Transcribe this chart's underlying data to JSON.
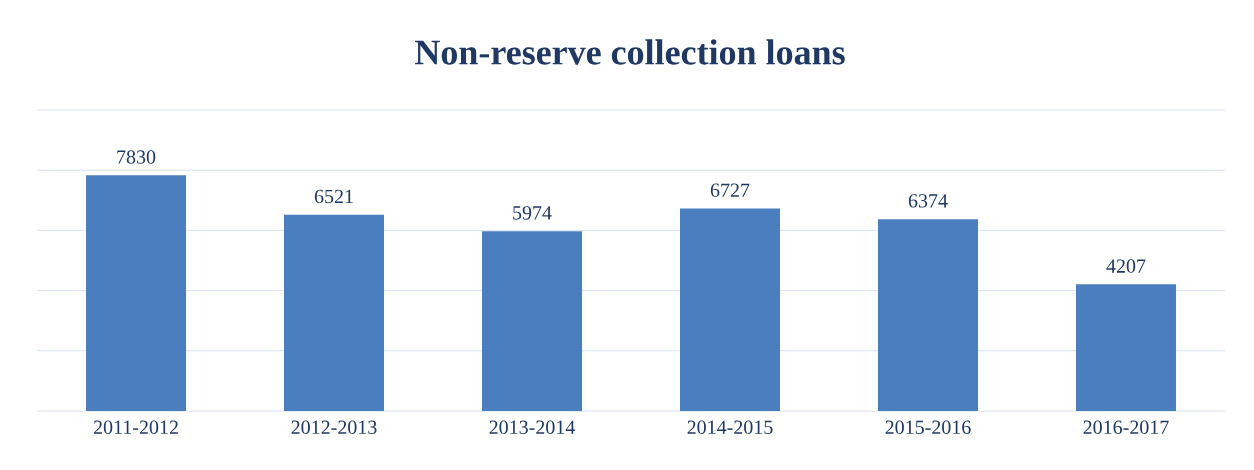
{
  "chart_data": {
    "type": "bar",
    "title": "Non-reserve collection loans",
    "categories": [
      "2011-2012",
      "2012-2013",
      "2013-2014",
      "2014-2015",
      "2015-2016",
      "2016-2017"
    ],
    "values": [
      7830,
      6521,
      5974,
      6727,
      6374,
      4207
    ],
    "color": "#4a7ebf",
    "ylim": [
      0,
      10000
    ],
    "yticks": [
      {
        "value": 0,
        "label": null
      },
      {
        "value": 2000,
        "label": null
      },
      {
        "value": 4000,
        "label": null
      },
      {
        "value": 6000,
        "label": null
      },
      {
        "value": 8000,
        "label": null
      },
      {
        "value": 10000,
        "label": null
      }
    ],
    "grid": "y",
    "data_labels": true
  }
}
